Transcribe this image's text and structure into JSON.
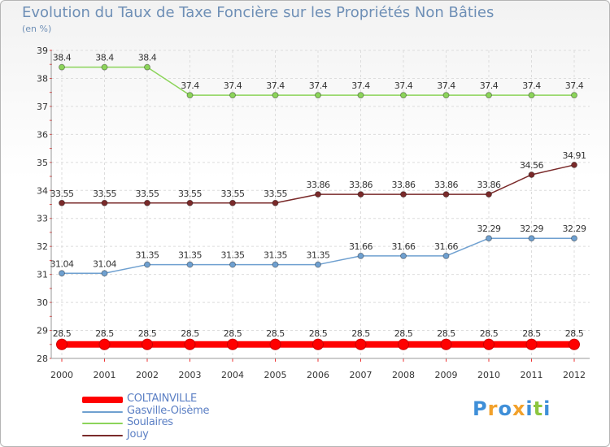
{
  "header": {
    "title": "Evolution du Taux de Taxe Foncière sur les Propriétés Non Bâties",
    "unit": "(en %)"
  },
  "chart_data": {
    "type": "line",
    "title": "Evolution du Taux de Taxe Foncière sur les Propriétés Non Bâties",
    "ylabel": "(en %)",
    "xlabel": "",
    "ylim": [
      28,
      39
    ],
    "yticks": [
      28,
      29,
      30,
      31,
      32,
      33,
      34,
      35,
      36,
      37,
      38,
      39
    ],
    "categories": [
      "2000",
      "2001",
      "2002",
      "2003",
      "2004",
      "2005",
      "2006",
      "2007",
      "2008",
      "2009",
      "2010",
      "2011",
      "2012"
    ],
    "grid": true,
    "legend_position": "bottom-left",
    "series": [
      {
        "name": "COLTAINVILLE",
        "color": "#ff0000",
        "values": [
          28.5,
          28.5,
          28.5,
          28.5,
          28.5,
          28.5,
          28.5,
          28.5,
          28.5,
          28.5,
          28.5,
          28.5,
          28.5
        ],
        "labels": [
          "28.5",
          "28.5",
          "28.5",
          "28.5",
          "28.5",
          "28.5",
          "28.5",
          "28.5",
          "28.5",
          "28.5",
          "28.5",
          "28.5",
          "28.5"
        ]
      },
      {
        "name": "Gasville-Oisème",
        "color": "#6fa0d0",
        "values": [
          31.04,
          31.04,
          31.35,
          31.35,
          31.35,
          31.35,
          31.35,
          31.66,
          31.66,
          31.66,
          32.29,
          32.29,
          32.29
        ],
        "labels": [
          "31.04",
          "31.04",
          "31.35",
          "31.35",
          "31.35",
          "31.35",
          "31.35",
          "31.66",
          "31.66",
          "31.66",
          "32.29",
          "32.29",
          "32.29"
        ]
      },
      {
        "name": "Soulaires",
        "color": "#8cd45a",
        "values": [
          38.4,
          38.4,
          38.4,
          37.4,
          37.4,
          37.4,
          37.4,
          37.4,
          37.4,
          37.4,
          37.4,
          37.4,
          37.4
        ],
        "labels": [
          "38.4",
          "38.4",
          "38.4",
          "37.4",
          "37.4",
          "37.4",
          "37.4",
          "37.4",
          "37.4",
          "37.4",
          "37.4",
          "37.4",
          "37.4"
        ]
      },
      {
        "name": "Jouy",
        "color": "#7a2a2a",
        "values": [
          33.55,
          33.55,
          33.55,
          33.55,
          33.55,
          33.55,
          33.86,
          33.86,
          33.86,
          33.86,
          33.86,
          34.56,
          34.91
        ],
        "labels": [
          "33.55",
          "33.55",
          "33.55",
          "33.55",
          "33.55",
          "33.55",
          "33.86",
          "33.86",
          "33.86",
          "33.86",
          "33.86",
          "34.56",
          "34.91"
        ]
      }
    ]
  },
  "logo": {
    "text": "Proxiti",
    "letters": [
      "P",
      "r",
      "o",
      "x",
      "i",
      "t",
      "i"
    ],
    "colors": [
      "#3f8fd8",
      "#f2a12b",
      "#3f8fd8",
      "#f2a12b",
      "#3f8fd8",
      "#8cc63f",
      "#3f8fd8"
    ]
  }
}
